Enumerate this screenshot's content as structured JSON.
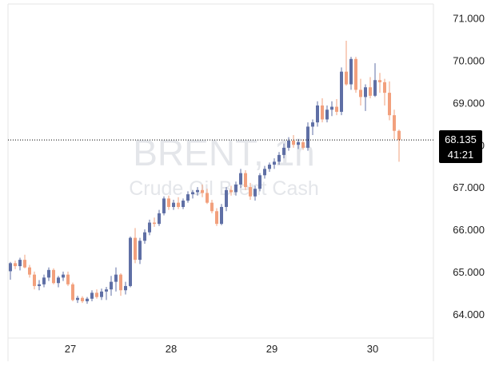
{
  "watermark": {
    "symbol": "BRENT, 1h",
    "description": "Crude Oil Brent Cash"
  },
  "price_label": {
    "value": "68.135",
    "countdown": "41:21"
  },
  "colors": {
    "up": "#5f6fa5",
    "down": "#f2a07d",
    "grid_border": "#e6e6e6",
    "price_line": "#000000",
    "price_box": "#000000",
    "watermark": "#e4e6ea"
  },
  "chart_data": {
    "type": "candlestick",
    "interval": "1h",
    "xlabel": "",
    "ylabel": "",
    "ylim": [
      63.45,
      71.35
    ],
    "y_ticks": [
      "64.000",
      "65.000",
      "66.000",
      "67.000",
      "68.000",
      "69.000",
      "70.000",
      "71.000"
    ],
    "x_ticks": [
      "27",
      "28",
      "29",
      "30"
    ],
    "x_tick_indices": [
      12.5,
      33.5,
      54.5,
      75.5
    ],
    "last_price": 68.135,
    "candles": [
      [
        65.03,
        65.25,
        64.83,
        65.22
      ],
      [
        65.22,
        65.28,
        65.08,
        65.15
      ],
      [
        65.15,
        65.35,
        65.05,
        65.3
      ],
      [
        65.3,
        65.42,
        65.1,
        65.12
      ],
      [
        65.12,
        65.18,
        64.88,
        64.95
      ],
      [
        64.95,
        65.02,
        64.6,
        64.68
      ],
      [
        64.68,
        64.82,
        64.58,
        64.72
      ],
      [
        64.72,
        64.95,
        64.65,
        64.88
      ],
      [
        64.88,
        65.12,
        64.8,
        65.06
      ],
      [
        65.06,
        65.1,
        64.72,
        64.75
      ],
      [
        64.75,
        64.92,
        64.65,
        64.88
      ],
      [
        64.88,
        65.02,
        64.8,
        64.95
      ],
      [
        64.95,
        65.02,
        64.68,
        64.72
      ],
      [
        64.72,
        64.76,
        64.32,
        64.35
      ],
      [
        64.35,
        64.45,
        64.28,
        64.4
      ],
      [
        64.4,
        64.44,
        64.28,
        64.32
      ],
      [
        64.32,
        64.42,
        64.26,
        64.38
      ],
      [
        64.38,
        64.58,
        64.32,
        64.52
      ],
      [
        64.52,
        64.6,
        64.38,
        64.42
      ],
      [
        64.42,
        64.62,
        64.35,
        64.55
      ],
      [
        64.55,
        64.66,
        64.35,
        64.6
      ],
      [
        64.6,
        64.92,
        64.45,
        64.78
      ],
      [
        64.78,
        65.12,
        64.55,
        64.95
      ],
      [
        64.95,
        64.98,
        64.45,
        64.58
      ],
      [
        64.58,
        64.78,
        64.48,
        64.68
      ],
      [
        64.68,
        65.85,
        64.65,
        65.82
      ],
      [
        65.82,
        66.05,
        65.22,
        65.3
      ],
      [
        65.3,
        65.82,
        65.2,
        65.75
      ],
      [
        65.75,
        66.02,
        65.68,
        65.95
      ],
      [
        65.95,
        66.25,
        65.88,
        66.18
      ],
      [
        66.18,
        66.3,
        66.08,
        66.15
      ],
      [
        66.15,
        66.48,
        66.1,
        66.4
      ],
      [
        66.4,
        66.8,
        66.35,
        66.75
      ],
      [
        66.75,
        66.82,
        66.48,
        66.55
      ],
      [
        66.55,
        66.72,
        66.48,
        66.65
      ],
      [
        66.65,
        66.78,
        66.5,
        66.55
      ],
      [
        66.55,
        66.75,
        66.5,
        66.7
      ],
      [
        66.7,
        66.92,
        66.65,
        66.85
      ],
      [
        66.85,
        66.95,
        66.75,
        66.9
      ],
      [
        66.9,
        67.02,
        66.82,
        66.95
      ],
      [
        66.95,
        67.08,
        66.78,
        66.88
      ],
      [
        66.88,
        66.98,
        66.62,
        66.65
      ],
      [
        66.65,
        66.72,
        66.4,
        66.45
      ],
      [
        66.45,
        66.52,
        66.1,
        66.15
      ],
      [
        66.15,
        66.62,
        66.12,
        66.55
      ],
      [
        66.55,
        67.02,
        66.45,
        66.95
      ],
      [
        66.95,
        67.05,
        66.82,
        66.9
      ],
      [
        66.9,
        67.15,
        66.82,
        67.08
      ],
      [
        67.08,
        67.45,
        67.0,
        67.35
      ],
      [
        67.35,
        67.42,
        66.95,
        67.02
      ],
      [
        67.02,
        67.12,
        66.72,
        66.8
      ],
      [
        66.8,
        67.05,
        66.7,
        66.98
      ],
      [
        66.98,
        67.35,
        66.92,
        67.3
      ],
      [
        67.3,
        67.52,
        67.22,
        67.45
      ],
      [
        67.45,
        67.6,
        67.38,
        67.55
      ],
      [
        67.55,
        67.7,
        67.45,
        67.62
      ],
      [
        67.62,
        67.85,
        67.55,
        67.78
      ],
      [
        67.78,
        68.05,
        67.7,
        67.95
      ],
      [
        67.95,
        68.2,
        67.88,
        68.12
      ],
      [
        68.12,
        68.25,
        67.95,
        68.02
      ],
      [
        68.02,
        68.15,
        67.92,
        68.08
      ],
      [
        68.08,
        68.15,
        67.9,
        67.95
      ],
      [
        67.95,
        68.55,
        67.88,
        68.45
      ],
      [
        68.45,
        68.62,
        68.25,
        68.55
      ],
      [
        68.55,
        69.05,
        68.45,
        68.95
      ],
      [
        68.95,
        69.12,
        68.55,
        68.62
      ],
      [
        68.62,
        68.95,
        68.55,
        68.85
      ],
      [
        68.85,
        69.05,
        68.7,
        68.92
      ],
      [
        68.92,
        69.1,
        68.72,
        68.8
      ],
      [
        68.8,
        69.85,
        68.72,
        69.75
      ],
      [
        69.75,
        70.48,
        69.42,
        69.45
      ],
      [
        69.45,
        70.1,
        69.32,
        70.05
      ],
      [
        70.05,
        70.1,
        69.25,
        69.32
      ],
      [
        69.32,
        69.58,
        68.95,
        69.15
      ],
      [
        69.15,
        69.45,
        68.82,
        69.38
      ],
      [
        69.38,
        69.62,
        69.12,
        69.18
      ],
      [
        69.18,
        69.95,
        69.15,
        69.55
      ],
      [
        69.55,
        69.72,
        69.25,
        69.5
      ],
      [
        69.5,
        69.58,
        68.95,
        69.25
      ],
      [
        69.25,
        69.52,
        68.6,
        68.72
      ],
      [
        68.72,
        68.85,
        68.15,
        68.35
      ],
      [
        68.35,
        68.38,
        67.62,
        68.135
      ]
    ]
  }
}
